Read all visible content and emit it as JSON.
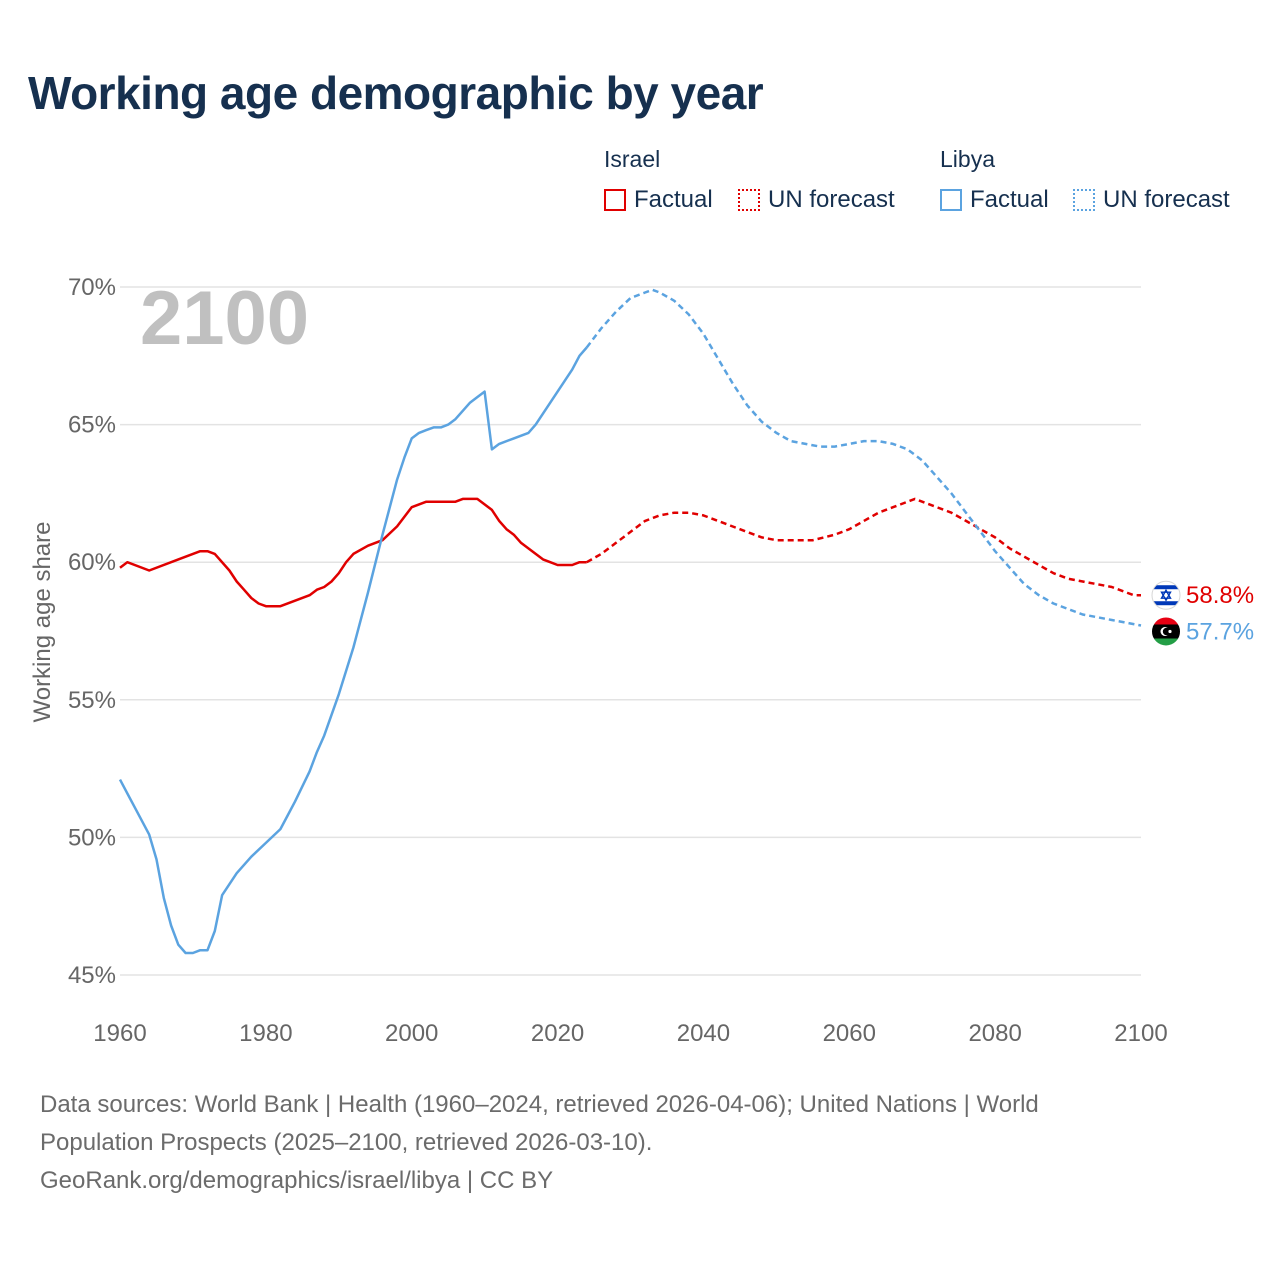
{
  "chart_data": {
    "type": "line",
    "title": "Working age demographic by year",
    "ylabel": "Working age share",
    "xlabel": "",
    "year_label": "2100",
    "xlim": [
      1960,
      2100
    ],
    "ylim": [
      45,
      70
    ],
    "x_ticks": [
      "1960",
      "1980",
      "2000",
      "2020",
      "2040",
      "2060",
      "2080",
      "2100"
    ],
    "y_ticks": [
      {
        "value": 45,
        "label": "45%"
      },
      {
        "value": 50,
        "label": "50%"
      },
      {
        "value": 55,
        "label": "55%"
      },
      {
        "value": 60,
        "label": "60%"
      },
      {
        "value": 65,
        "label": "65%"
      },
      {
        "value": 70,
        "label": "70%"
      }
    ],
    "grid": true,
    "legend": {
      "groups": [
        {
          "title": "Israel",
          "color": "#e00000",
          "factual": "Factual",
          "forecast": "UN forecast"
        },
        {
          "title": "Libya",
          "color": "#5ba3e0",
          "factual": "Factual",
          "forecast": "UN forecast"
        }
      ]
    },
    "series": [
      {
        "name": "Israel",
        "color": "#e00000",
        "end_label": "58.8%",
        "factual": {
          "x": [
            1960,
            1961,
            1964,
            1968,
            1971,
            1972,
            1973,
            1975,
            1976,
            1977,
            1978,
            1979,
            1980,
            1982,
            1986,
            1987,
            1988,
            1989,
            1990,
            1991,
            1992,
            1994,
            1996,
            1998,
            2000,
            2002,
            2004,
            2006,
            2007,
            2009,
            2011,
            2012,
            2013,
            2014,
            2015,
            2017,
            2018,
            2019,
            2020,
            2021,
            2022,
            2023,
            2024
          ],
          "y": [
            59.8,
            60.0,
            59.7,
            60.1,
            60.4,
            60.4,
            60.3,
            59.7,
            59.3,
            59.0,
            58.7,
            58.5,
            58.4,
            58.4,
            58.8,
            59.0,
            59.1,
            59.3,
            59.6,
            60.0,
            60.3,
            60.6,
            60.8,
            61.3,
            62.0,
            62.2,
            62.2,
            62.2,
            62.3,
            62.3,
            61.9,
            61.5,
            61.2,
            61.0,
            60.7,
            60.3,
            60.1,
            60.0,
            59.9,
            59.9,
            59.9,
            60.0,
            60.0
          ]
        },
        "forecast": {
          "x": [
            2024,
            2026,
            2028,
            2030,
            2032,
            2034,
            2036,
            2038,
            2040,
            2042,
            2045,
            2048,
            2050,
            2052,
            2055,
            2058,
            2060,
            2062,
            2064,
            2066,
            2068,
            2069,
            2070,
            2072,
            2074,
            2076,
            2078,
            2080,
            2082,
            2084,
            2086,
            2088,
            2090,
            2092,
            2094,
            2096,
            2098,
            2099,
            2100
          ],
          "y": [
            60.0,
            60.3,
            60.7,
            61.1,
            61.5,
            61.7,
            61.8,
            61.8,
            61.7,
            61.5,
            61.2,
            60.9,
            60.8,
            60.8,
            60.8,
            61.0,
            61.2,
            61.5,
            61.8,
            62.0,
            62.2,
            62.3,
            62.2,
            62.0,
            61.8,
            61.5,
            61.2,
            60.9,
            60.5,
            60.2,
            59.9,
            59.6,
            59.4,
            59.3,
            59.2,
            59.1,
            58.9,
            58.8,
            58.8
          ]
        }
      },
      {
        "name": "Libya",
        "color": "#5ba3e0",
        "end_label": "57.7%",
        "factual": {
          "x": [
            1960,
            1962,
            1964,
            1965,
            1966,
            1967,
            1968,
            1969,
            1970,
            1971,
            1972,
            1973,
            1974,
            1975,
            1976,
            1977,
            1978,
            1980,
            1982,
            1983,
            1984,
            1986,
            1987,
            1988,
            1990,
            1992,
            1994,
            1996,
            1998,
            1999,
            2000,
            2001,
            2002,
            2003,
            2004,
            2005,
            2006,
            2007,
            2008,
            2009,
            2010,
            2011,
            2012,
            2014,
            2016,
            2017,
            2018,
            2019,
            2020,
            2021,
            2022,
            2023,
            2024
          ],
          "y": [
            52.1,
            51.1,
            50.1,
            49.2,
            47.8,
            46.8,
            46.1,
            45.8,
            45.8,
            45.9,
            45.9,
            46.6,
            47.9,
            48.3,
            48.7,
            49.0,
            49.3,
            49.8,
            50.3,
            50.8,
            51.3,
            52.4,
            53.1,
            53.7,
            55.2,
            56.9,
            58.9,
            61.0,
            63.0,
            63.8,
            64.5,
            64.7,
            64.8,
            64.9,
            64.9,
            65.0,
            65.2,
            65.5,
            65.8,
            66.0,
            66.2,
            64.1,
            64.3,
            64.5,
            64.7,
            65.0,
            65.4,
            65.8,
            66.2,
            66.6,
            67.0,
            67.5,
            67.8
          ]
        },
        "forecast": {
          "x": [
            2024,
            2026,
            2028,
            2030,
            2032,
            2033,
            2034,
            2036,
            2038,
            2040,
            2042,
            2044,
            2046,
            2048,
            2050,
            2052,
            2054,
            2056,
            2058,
            2060,
            2062,
            2064,
            2066,
            2068,
            2070,
            2072,
            2074,
            2076,
            2078,
            2080,
            2082,
            2084,
            2086,
            2088,
            2090,
            2092,
            2094,
            2096,
            2098,
            2100
          ],
          "y": [
            67.8,
            68.5,
            69.1,
            69.6,
            69.8,
            69.9,
            69.8,
            69.5,
            69.0,
            68.3,
            67.4,
            66.5,
            65.7,
            65.1,
            64.7,
            64.4,
            64.3,
            64.2,
            64.2,
            64.3,
            64.4,
            64.4,
            64.3,
            64.1,
            63.7,
            63.1,
            62.5,
            61.8,
            61.1,
            60.4,
            59.8,
            59.2,
            58.8,
            58.5,
            58.3,
            58.1,
            58.0,
            57.9,
            57.8,
            57.7
          ]
        }
      }
    ]
  },
  "sources": {
    "line1": "Data sources: World Bank | Health (1960–2024, retrieved 2026-04-06); United Nations | World",
    "line2": "Population Prospects (2025–2100, retrieved 2026-03-10).",
    "line3": "GeoRank.org/demographics/israel/libya | CC BY"
  },
  "icons": {
    "israel_flag": "israel-flag-icon",
    "libya_flag": "libya-flag-icon"
  }
}
